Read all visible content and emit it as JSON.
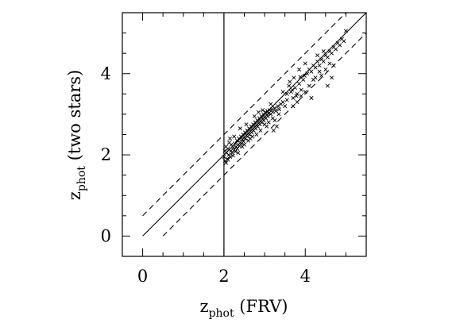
{
  "chart_data": {
    "type": "scatter",
    "title": "",
    "xlabel": {
      "main": "z",
      "sub": "phot",
      "suffix": " (FRV)"
    },
    "ylabel": {
      "main": "z",
      "sub": "phot",
      "suffix": " (two stars)"
    },
    "xlim": [
      -0.5,
      5.5
    ],
    "ylim": [
      -0.5,
      5.5
    ],
    "x_ticks": [
      0,
      2,
      4
    ],
    "y_ticks": [
      0,
      2,
      4
    ],
    "x_tick_labels": [
      "0",
      "2",
      "4"
    ],
    "y_tick_labels": [
      "0",
      "2",
      "4"
    ],
    "x_minor_step": 0.5,
    "y_minor_step": 0.5,
    "marker": "x",
    "grid": false,
    "reference_lines": [
      {
        "name": "identity",
        "style": "solid",
        "x": [
          0,
          5.5
        ],
        "y": [
          0,
          5.5
        ]
      },
      {
        "name": "upper-bound",
        "style": "dashed",
        "x": [
          0,
          5.5
        ],
        "y": [
          0.5,
          6.0
        ]
      },
      {
        "name": "lower-bound",
        "style": "dashed",
        "x": [
          0.5,
          5.5
        ],
        "y": [
          0,
          5.0
        ]
      }
    ],
    "vertical_line": {
      "x": 2.0
    },
    "points": [
      [
        2.0,
        1.95
      ],
      [
        2.02,
        2.1
      ],
      [
        2.03,
        1.85
      ],
      [
        2.05,
        2.2
      ],
      [
        2.06,
        2.05
      ],
      [
        2.08,
        1.9
      ],
      [
        2.1,
        2.15
      ],
      [
        2.12,
        2.0
      ],
      [
        2.13,
        2.3
      ],
      [
        2.15,
        1.95
      ],
      [
        2.17,
        2.1
      ],
      [
        2.18,
        2.25
      ],
      [
        2.2,
        2.05
      ],
      [
        2.22,
        1.98
      ],
      [
        2.23,
        2.18
      ],
      [
        2.25,
        2.12
      ],
      [
        2.27,
        2.28
      ],
      [
        2.28,
        2.08
      ],
      [
        2.3,
        2.2
      ],
      [
        2.32,
        2.35
      ],
      [
        2.33,
        2.15
      ],
      [
        2.35,
        2.25
      ],
      [
        2.37,
        2.4
      ],
      [
        2.38,
        2.22
      ],
      [
        2.4,
        2.3
      ],
      [
        2.42,
        2.45
      ],
      [
        2.43,
        2.28
      ],
      [
        2.45,
        2.38
      ],
      [
        2.47,
        2.5
      ],
      [
        2.48,
        2.33
      ],
      [
        2.5,
        2.42
      ],
      [
        2.52,
        2.55
      ],
      [
        2.53,
        2.4
      ],
      [
        2.55,
        2.48
      ],
      [
        2.57,
        2.6
      ],
      [
        2.58,
        2.45
      ],
      [
        2.6,
        2.52
      ],
      [
        2.62,
        2.65
      ],
      [
        2.63,
        2.5
      ],
      [
        2.65,
        2.58
      ],
      [
        2.67,
        2.7
      ],
      [
        2.68,
        2.55
      ],
      [
        2.7,
        2.62
      ],
      [
        2.72,
        2.75
      ],
      [
        2.73,
        2.6
      ],
      [
        2.75,
        2.68
      ],
      [
        2.77,
        2.8
      ],
      [
        2.78,
        2.65
      ],
      [
        2.8,
        2.72
      ],
      [
        2.82,
        2.85
      ],
      [
        2.83,
        2.7
      ],
      [
        2.85,
        2.78
      ],
      [
        2.87,
        2.9
      ],
      [
        2.88,
        2.75
      ],
      [
        2.9,
        2.82
      ],
      [
        2.92,
        2.95
      ],
      [
        2.93,
        2.8
      ],
      [
        2.95,
        2.88
      ],
      [
        2.97,
        3.0
      ],
      [
        2.98,
        2.85
      ],
      [
        3.0,
        2.92
      ],
      [
        3.02,
        3.05
      ],
      [
        3.03,
        2.9
      ],
      [
        3.05,
        2.98
      ],
      [
        3.07,
        3.08
      ],
      [
        3.08,
        2.95
      ],
      [
        3.1,
        3.02
      ],
      [
        3.12,
        3.1
      ],
      [
        3.15,
        3.0
      ],
      [
        3.18,
        3.12
      ],
      [
        3.2,
        3.05
      ],
      [
        3.22,
        2.6
      ],
      [
        3.25,
        3.15
      ],
      [
        3.28,
        3.08
      ],
      [
        3.3,
        2.7
      ],
      [
        3.33,
        3.2
      ],
      [
        3.36,
        3.12
      ],
      [
        3.4,
        3.25
      ],
      [
        3.45,
        3.3
      ],
      [
        3.5,
        3.2
      ],
      [
        2.4,
        2.65
      ],
      [
        2.55,
        2.75
      ],
      [
        2.6,
        2.35
      ],
      [
        2.75,
        2.95
      ],
      [
        2.85,
        3.05
      ],
      [
        2.95,
        3.1
      ],
      [
        3.0,
        2.75
      ],
      [
        3.1,
        2.8
      ],
      [
        2.45,
        2.2
      ],
      [
        2.65,
        2.4
      ],
      [
        2.9,
        2.6
      ],
      [
        3.15,
        3.25
      ],
      [
        3.25,
        2.85
      ],
      [
        3.35,
        3.0
      ],
      [
        2.15,
        2.4
      ],
      [
        2.25,
        2.45
      ],
      [
        2.05,
        1.8
      ],
      [
        2.1,
        1.88
      ],
      [
        2.35,
        2.05
      ],
      [
        2.5,
        2.25
      ],
      [
        2.7,
        2.45
      ],
      [
        2.8,
        2.5
      ],
      [
        3.05,
        2.7
      ],
      [
        3.2,
        2.9
      ],
      [
        3.55,
        3.5
      ],
      [
        3.65,
        3.55
      ],
      [
        3.7,
        3.4
      ],
      [
        3.75,
        3.65
      ],
      [
        3.8,
        3.5
      ],
      [
        3.85,
        3.75
      ],
      [
        3.9,
        3.6
      ],
      [
        3.95,
        3.85
      ],
      [
        3.6,
        3.7
      ],
      [
        3.7,
        3.2
      ],
      [
        3.8,
        3.3
      ],
      [
        3.9,
        3.45
      ],
      [
        4.0,
        3.55
      ],
      [
        4.1,
        3.7
      ],
      [
        4.15,
        3.4
      ],
      [
        4.2,
        3.85
      ],
      [
        3.45,
        3.55
      ],
      [
        3.55,
        3.35
      ],
      [
        3.62,
        3.8
      ],
      [
        3.68,
        3.6
      ],
      [
        3.72,
        3.9
      ],
      [
        3.78,
        3.45
      ],
      [
        3.88,
        3.92
      ],
      [
        3.98,
        3.95
      ],
      [
        4.05,
        4.0
      ],
      [
        4.1,
        4.1
      ],
      [
        4.15,
        4.05
      ],
      [
        4.2,
        4.2
      ],
      [
        4.25,
        4.15
      ],
      [
        4.3,
        4.3
      ],
      [
        4.35,
        4.2
      ],
      [
        4.4,
        4.35
      ],
      [
        4.45,
        4.3
      ],
      [
        4.5,
        4.45
      ],
      [
        4.55,
        4.4
      ],
      [
        4.6,
        4.55
      ],
      [
        4.65,
        4.5
      ],
      [
        4.7,
        4.65
      ],
      [
        4.75,
        4.6
      ],
      [
        4.8,
        4.75
      ],
      [
        4.85,
        4.7
      ],
      [
        4.9,
        4.85
      ],
      [
        4.95,
        4.8
      ],
      [
        5.0,
        5.05
      ],
      [
        4.4,
        3.95
      ],
      [
        4.5,
        4.1
      ],
      [
        4.6,
        4.25
      ],
      [
        4.7,
        4.2
      ],
      [
        4.3,
        4.45
      ],
      [
        4.45,
        4.55
      ],
      [
        4.25,
        3.9
      ],
      [
        4.55,
        3.7
      ],
      [
        4.65,
        3.9
      ],
      [
        4.0,
        4.25
      ],
      [
        3.85,
        4.1
      ],
      [
        4.35,
        4.05
      ]
    ]
  }
}
